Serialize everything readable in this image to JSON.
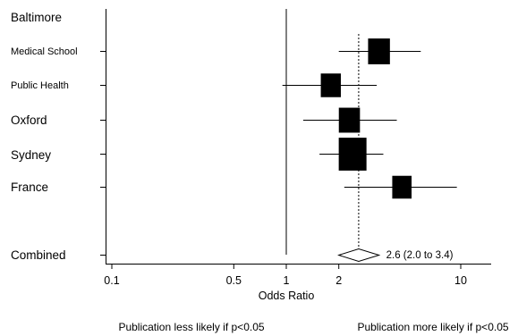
{
  "chart_data": {
    "type": "forest",
    "title": "",
    "xlabel": "Odds Ratio",
    "x_scale": "log",
    "xlim": [
      0.1,
      15
    ],
    "xticks": [
      0.1,
      0.5,
      1,
      2,
      10
    ],
    "xtick_labels": [
      "0.1",
      "0.5",
      "1",
      "2",
      "10"
    ],
    "null_line": 1,
    "reference_line": 2.6,
    "rows": [
      {
        "label": "Baltimore",
        "heading": true
      },
      {
        "label": "Medical School",
        "or": 3.4,
        "lo": 2.0,
        "hi": 5.9,
        "weight": 0.62
      },
      {
        "label": "Public Health",
        "or": 1.8,
        "lo": 0.95,
        "hi": 3.3,
        "weight": 0.52
      },
      {
        "label": "Oxford",
        "or": 2.3,
        "lo": 1.25,
        "hi": 4.3,
        "weight": 0.58
      },
      {
        "label": "Sydney",
        "or": 2.4,
        "lo": 1.55,
        "hi": 3.6,
        "weight": 0.95
      },
      {
        "label": "France",
        "or": 4.6,
        "lo": 2.15,
        "hi": 9.5,
        "weight": 0.48
      }
    ],
    "combined": {
      "label": "Combined",
      "or": 2.6,
      "lo": 2.0,
      "hi": 3.4,
      "text": "2.6 (2.0 to 3.4)"
    },
    "captions": {
      "left": "Publication less likely if p<0.05",
      "right": "Publication more likely if p<0.05"
    }
  }
}
